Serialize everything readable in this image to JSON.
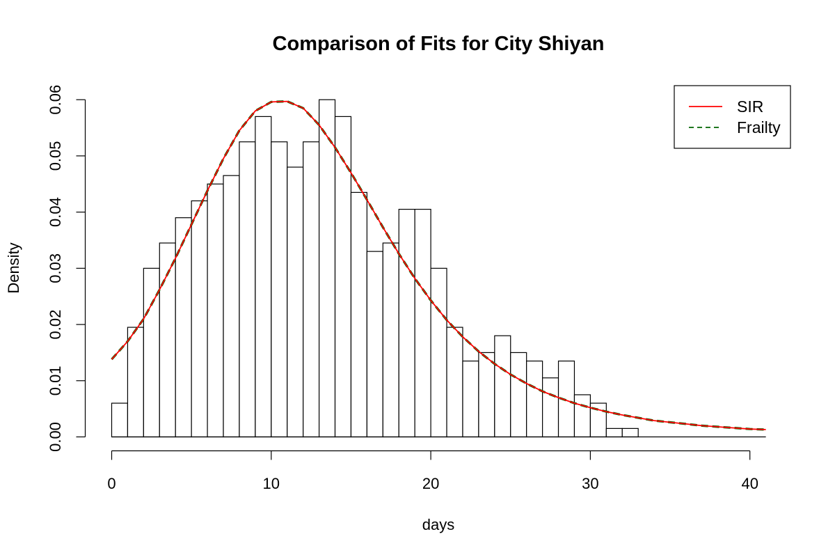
{
  "chart_data": {
    "type": "bar",
    "title": "Comparison of Fits for City Shiyan",
    "xlabel": "days",
    "ylabel": "Density",
    "xlim": [
      0,
      41
    ],
    "ylim": [
      0,
      0.06
    ],
    "x_ticks": [
      0,
      10,
      20,
      30,
      40
    ],
    "y_ticks": [
      "0.00",
      "0.01",
      "0.02",
      "0.03",
      "0.04",
      "0.05",
      "0.06"
    ],
    "histogram": {
      "bin_width": 1,
      "bin_starts": [
        0,
        1,
        2,
        3,
        4,
        5,
        6,
        7,
        8,
        9,
        10,
        11,
        12,
        13,
        14,
        15,
        16,
        17,
        18,
        19,
        20,
        21,
        22,
        23,
        24,
        25,
        26,
        27,
        28,
        29,
        30,
        31,
        32,
        33,
        34,
        35,
        36,
        37,
        38,
        39,
        40
      ],
      "values": [
        0.006,
        0.0195,
        0.03,
        0.0345,
        0.039,
        0.042,
        0.045,
        0.0465,
        0.0525,
        0.057,
        0.0525,
        0.048,
        0.0525,
        0.06,
        0.057,
        0.0435,
        0.033,
        0.0345,
        0.0405,
        0.0405,
        0.03,
        0.0195,
        0.0135,
        0.015,
        0.018,
        0.015,
        0.0135,
        0.0105,
        0.0135,
        0.0075,
        0.006,
        0.0015,
        0.0015,
        0,
        0,
        0,
        0,
        0,
        0,
        0,
        0
      ]
    },
    "series": [
      {
        "name": "SIR",
        "color": "#ff0000",
        "style": "solid",
        "x": [
          0,
          1,
          2,
          3,
          4,
          5,
          6,
          7,
          8,
          9,
          10,
          11,
          12,
          13,
          14,
          15,
          16,
          17,
          18,
          19,
          20,
          21,
          22,
          23,
          24,
          25,
          26,
          27,
          28,
          29,
          30,
          31,
          32,
          33,
          34,
          35,
          36,
          37,
          38,
          39,
          40,
          41
        ],
        "y": [
          0.0138,
          0.017,
          0.021,
          0.0262,
          0.0318,
          0.0378,
          0.0438,
          0.0495,
          0.0545,
          0.058,
          0.0596,
          0.0597,
          0.0585,
          0.0555,
          0.0515,
          0.047,
          0.0422,
          0.0373,
          0.0326,
          0.0282,
          0.0243,
          0.0208,
          0.0178,
          0.0152,
          0.013,
          0.0111,
          0.0095,
          0.0081,
          0.007,
          0.006,
          0.0052,
          0.0045,
          0.0039,
          0.0034,
          0.0029,
          0.0026,
          0.0023,
          0.002,
          0.0018,
          0.0016,
          0.0014,
          0.0013
        ]
      },
      {
        "name": "Frailty",
        "color": "#006400",
        "style": "dashed",
        "x": [
          0,
          1,
          2,
          3,
          4,
          5,
          6,
          7,
          8,
          9,
          10,
          11,
          12,
          13,
          14,
          15,
          16,
          17,
          18,
          19,
          20,
          21,
          22,
          23,
          24,
          25,
          26,
          27,
          28,
          29,
          30,
          31,
          32,
          33,
          34,
          35,
          36,
          37,
          38,
          39,
          40,
          41
        ],
        "y": [
          0.0138,
          0.017,
          0.021,
          0.0262,
          0.0318,
          0.0378,
          0.0438,
          0.0495,
          0.0545,
          0.058,
          0.0596,
          0.0597,
          0.0585,
          0.0555,
          0.0515,
          0.047,
          0.0422,
          0.0373,
          0.0326,
          0.0282,
          0.0243,
          0.0208,
          0.0178,
          0.0152,
          0.013,
          0.0111,
          0.0095,
          0.0081,
          0.007,
          0.006,
          0.0052,
          0.0045,
          0.0039,
          0.0034,
          0.0029,
          0.0026,
          0.0023,
          0.002,
          0.0018,
          0.0016,
          0.0014,
          0.0013
        ]
      }
    ],
    "legend": {
      "placement": "top-right",
      "entries": [
        "SIR",
        "Frailty"
      ]
    },
    "grid": false
  }
}
